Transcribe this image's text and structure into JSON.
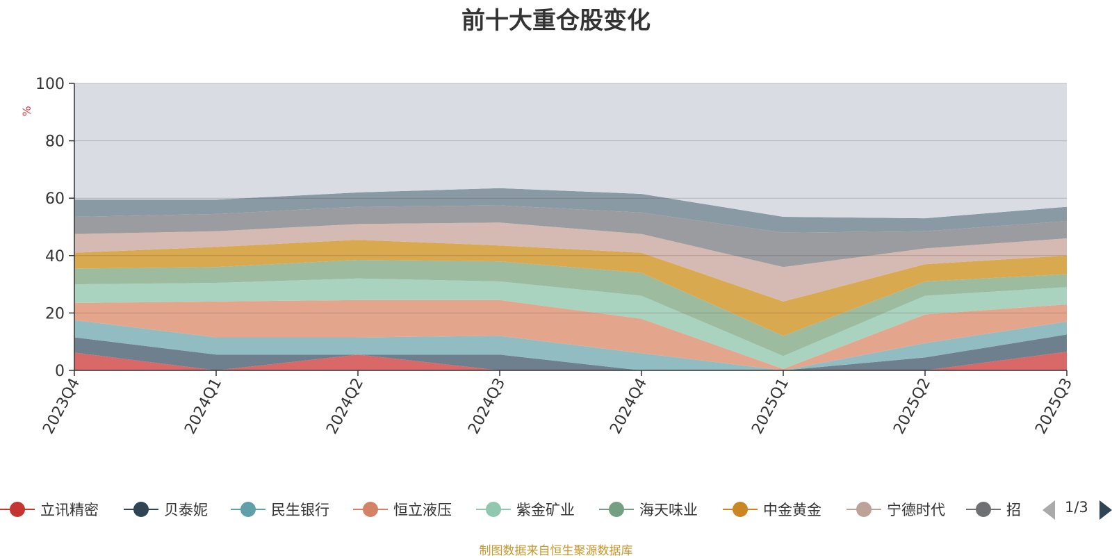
{
  "chart_data": {
    "type": "area",
    "title": "前十大重仓股变化",
    "ylabel": "%",
    "ylim": [
      0,
      100
    ],
    "yticks": [
      0,
      20,
      40,
      60,
      80,
      100
    ],
    "categories": [
      "2023Q4",
      "2024Q1",
      "2024Q2",
      "2024Q3",
      "2024Q4",
      "2025Q1",
      "2025Q2",
      "2025Q3"
    ],
    "grid": true,
    "stacked_percent": true,
    "series": [
      {
        "name": "立讯精密",
        "color": "#c23531"
      },
      {
        "name": "贝泰妮",
        "color": "#2f4554"
      },
      {
        "name": "民生银行",
        "color": "#61a0a8"
      },
      {
        "name": "恒立液压",
        "color": "#d48265"
      },
      {
        "name": "紫金矿业",
        "color": "#91c7ae"
      },
      {
        "name": "海天味业",
        "color": "#749f83"
      },
      {
        "name": "中金黄金",
        "color": "#ca8622"
      },
      {
        "name": "宁德时代",
        "color": "#bda29a"
      },
      {
        "name": "招",
        "color": "#6e7074"
      }
    ],
    "legend_placement": "bottom",
    "legend_page": "1/3",
    "source": "制图数据来自恒生聚源数据库"
  }
}
